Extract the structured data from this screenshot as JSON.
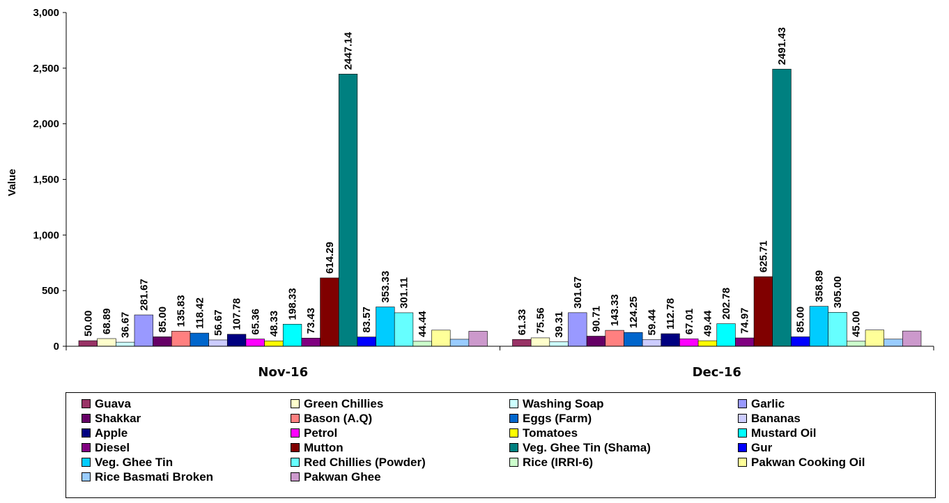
{
  "chart_data": {
    "type": "bar",
    "ylabel": "Value",
    "ylim": [
      0,
      3000
    ],
    "yticks": [
      "0",
      "500",
      "1,000",
      "1,500",
      "2,000",
      "2,500",
      "3,000"
    ],
    "ytick_values": [
      0,
      500,
      1000,
      1500,
      2000,
      2500,
      3000
    ],
    "categories": [
      "Nov-16",
      "Dec-16"
    ],
    "legend_position": "bottom",
    "series": [
      {
        "name": "Guava",
        "color": "#993366",
        "values": [
          50.0,
          61.33
        ],
        "labels": [
          "50.00",
          "61.33"
        ]
      },
      {
        "name": "Green Chillies",
        "color": "#FFFFCC",
        "values": [
          68.89,
          75.56
        ],
        "labels": [
          "68.89",
          "75.56"
        ]
      },
      {
        "name": "Washing Soap",
        "color": "#CCFFFF",
        "values": [
          36.67,
          39.31
        ],
        "labels": [
          "36.67",
          "39.31"
        ]
      },
      {
        "name": "Garlic",
        "color": "#9999FF",
        "values": [
          281.67,
          301.67
        ],
        "labels": [
          "281.67",
          "301.67"
        ]
      },
      {
        "name": "Shakkar",
        "color": "#660066",
        "values": [
          85.0,
          90.71
        ],
        "labels": [
          "85.00",
          "90.71"
        ]
      },
      {
        "name": "Bason (A.Q)",
        "color": "#FF8080",
        "values": [
          135.83,
          143.33
        ],
        "labels": [
          "135.83",
          "143.33"
        ]
      },
      {
        "name": "Eggs (Farm)",
        "color": "#0066CC",
        "values": [
          118.42,
          124.25
        ],
        "labels": [
          "118.42",
          "124.25"
        ]
      },
      {
        "name": "Bananas",
        "color": "#CCCCFF",
        "values": [
          56.67,
          59.44
        ],
        "labels": [
          "56.67",
          "59.44"
        ]
      },
      {
        "name": "Apple",
        "color": "#000080",
        "values": [
          107.78,
          112.78
        ],
        "labels": [
          "107.78",
          "112.78"
        ]
      },
      {
        "name": "Petrol",
        "color": "#FF00FF",
        "values": [
          65.36,
          67.01
        ],
        "labels": [
          "65.36",
          "67.01"
        ]
      },
      {
        "name": "Tomatoes",
        "color": "#FFFF00",
        "values": [
          48.33,
          49.44
        ],
        "labels": [
          "48.33",
          "49.44"
        ]
      },
      {
        "name": "Mustard Oil",
        "color": "#00FFFF",
        "values": [
          198.33,
          202.78
        ],
        "labels": [
          "198.33",
          "202.78"
        ]
      },
      {
        "name": "Diesel",
        "color": "#800080",
        "values": [
          73.43,
          74.97
        ],
        "labels": [
          "73.43",
          "74.97"
        ]
      },
      {
        "name": "Mutton",
        "color": "#800000",
        "values": [
          614.29,
          625.71
        ],
        "labels": [
          "614.29",
          "625.71"
        ]
      },
      {
        "name": "Veg. Ghee Tin (Shama)",
        "color": "#008080",
        "values": [
          2447.14,
          2491.43
        ],
        "labels": [
          "2447.14",
          "2491.43"
        ]
      },
      {
        "name": "Gur",
        "color": "#0000FF",
        "values": [
          83.57,
          85.0
        ],
        "labels": [
          "83.57",
          "85.00"
        ]
      },
      {
        "name": "Veg. Ghee Tin",
        "color": "#00CCFF",
        "values": [
          353.33,
          358.89
        ],
        "labels": [
          "353.33",
          "358.89"
        ]
      },
      {
        "name": "Red Chillies (Powder)",
        "color": "#66FFFF",
        "values": [
          301.11,
          305.0
        ],
        "labels": [
          "301.11",
          "305.00"
        ]
      },
      {
        "name": "Rice (IRRI-6)",
        "color": "#CCFFCC",
        "values": [
          44.44,
          45.0
        ],
        "labels": [
          "44.44",
          "45.00"
        ]
      },
      {
        "name": "Pakwan Cooking Oil",
        "color": "#FFFF99",
        "values": [
          145,
          146
        ],
        "labels": [
          "",
          ""
        ]
      },
      {
        "name": "Rice Basmati Broken",
        "color": "#99CCFF",
        "values": [
          63,
          64
        ],
        "labels": [
          "",
          ""
        ]
      },
      {
        "name": "Pakwan Ghee",
        "color": "#CC99CC",
        "values": [
          135,
          137
        ],
        "labels": [
          "",
          ""
        ]
      }
    ]
  }
}
